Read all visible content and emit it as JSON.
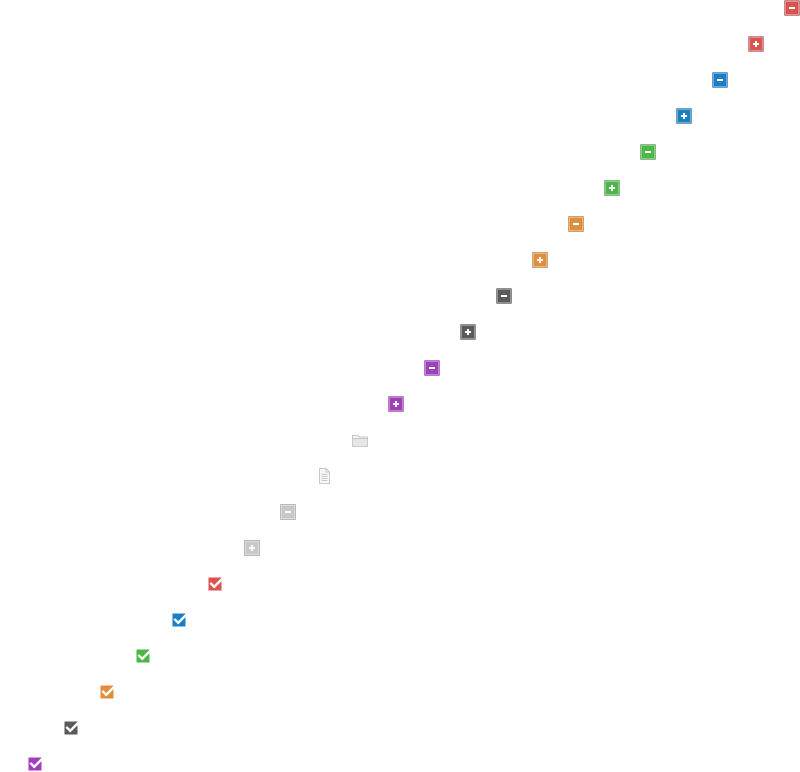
{
  "sprite_sheet": {
    "icons": [
      {
        "name": "red-minus-icon",
        "kind": "minus",
        "color": "#d9534f"
      },
      {
        "name": "red-plus-icon",
        "kind": "plus",
        "color": "#d9534f"
      },
      {
        "name": "blue-minus-icon",
        "kind": "minus",
        "color": "#1b7fc4"
      },
      {
        "name": "blue-plus-icon",
        "kind": "plus",
        "color": "#1b7fc4"
      },
      {
        "name": "green-minus-icon",
        "kind": "minus",
        "color": "#4cb747"
      },
      {
        "name": "green-plus-icon",
        "kind": "plus",
        "color": "#4cb747"
      },
      {
        "name": "orange-minus-icon",
        "kind": "minus",
        "color": "#e38d3c"
      },
      {
        "name": "orange-plus-icon",
        "kind": "plus",
        "color": "#e38d3c"
      },
      {
        "name": "dark-gray-minus-icon",
        "kind": "minus",
        "color": "#5a5a5a"
      },
      {
        "name": "dark-gray-plus-icon",
        "kind": "plus",
        "color": "#5a5a5a"
      },
      {
        "name": "purple-minus-icon",
        "kind": "minus",
        "color": "#a23dbd"
      },
      {
        "name": "purple-plus-icon",
        "kind": "plus",
        "color": "#a23dbd"
      },
      {
        "name": "folder-icon",
        "kind": "folder",
        "color": "#c8c8c8"
      },
      {
        "name": "document-icon",
        "kind": "document",
        "color": "#c8c8c8"
      },
      {
        "name": "light-gray-minus-icon",
        "kind": "minus",
        "color": "#c8c8c8"
      },
      {
        "name": "light-gray-plus-icon",
        "kind": "plus",
        "color": "#c8c8c8"
      },
      {
        "name": "red-checkbox-checked-icon",
        "kind": "check",
        "color": "#d9534f"
      },
      {
        "name": "blue-checkbox-checked-icon",
        "kind": "check",
        "color": "#1b7fc4"
      },
      {
        "name": "green-checkbox-checked-icon",
        "kind": "check",
        "color": "#4cb747"
      },
      {
        "name": "orange-checkbox-checked-icon",
        "kind": "check",
        "color": "#e38d3c"
      },
      {
        "name": "dark-gray-checkbox-checked-icon",
        "kind": "check",
        "color": "#5a5a5a"
      },
      {
        "name": "purple-checkbox-checked-icon",
        "kind": "check",
        "color": "#a23dbd"
      }
    ]
  }
}
